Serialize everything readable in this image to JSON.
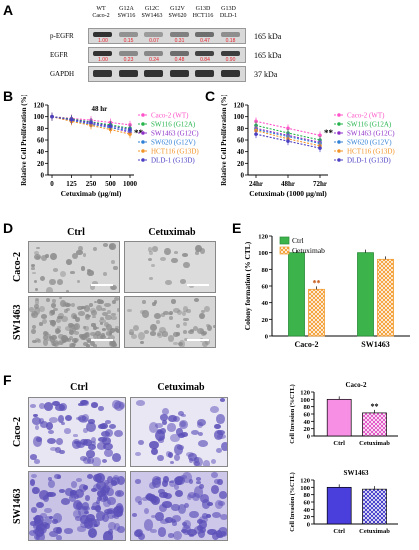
{
  "panels": {
    "A": "A",
    "B": "B",
    "C": "C",
    "D": "D",
    "E": "E",
    "F": "F"
  },
  "panelA": {
    "lanes": [
      {
        "line1": "WT",
        "line2": "Caco-2"
      },
      {
        "line1": "G12A",
        "line2": "SW116"
      },
      {
        "line1": "G12C",
        "line2": "SW1463"
      },
      {
        "line1": "G12V",
        "line2": "SW620"
      },
      {
        "line1": "G13D",
        "line2": "HCT116"
      },
      {
        "line1": "G13D",
        "line2": "DLD-1"
      }
    ],
    "rows": [
      {
        "label": "p-EGFR",
        "kda": "165 kDa",
        "values": [
          "1.00",
          "0.15",
          "0.07",
          "0.31",
          "0.47",
          "0.18"
        ]
      },
      {
        "label": "EGFR",
        "kda": "165 kDa",
        "values": [
          "1.00",
          "0.23",
          "0.24",
          "0.48",
          "0.84",
          "0.90"
        ]
      },
      {
        "label": "GAPDH",
        "kda": "37 kDa",
        "values": []
      }
    ],
    "value_color": "#e8212b"
  },
  "legend_lines": [
    "Caco-2 (WT)",
    "SW116 (G12A)",
    "SW1463 (G12C)",
    "SW620 (G12V)",
    "HCT116 (G13D)",
    "DLD-1 (G13D)"
  ],
  "series_colors": [
    "#ff52c8",
    "#22b34a",
    "#8e2fc8",
    "#2f7fd6",
    "#f29327",
    "#4a3ec2"
  ],
  "chart_B": {
    "type": "line",
    "ylabel": "Relative Cell Proliferation (%)",
    "xlabel": "Cetuximab (μg/ml)",
    "annotation": "48 hr",
    "x": [
      0,
      125,
      250,
      500,
      1000
    ],
    "x_ticks": [
      "0",
      "125",
      "250",
      "500",
      "1000"
    ],
    "ylim": [
      0,
      120
    ],
    "y_ticks": [
      "0",
      "20",
      "40",
      "60",
      "80",
      "100",
      "120"
    ],
    "sig": "**",
    "series": [
      {
        "name": "Caco-2 (WT)",
        "values": [
          100,
          97,
          94,
          90,
          86
        ]
      },
      {
        "name": "SW116 (G12A)",
        "values": [
          100,
          96,
          91,
          86,
          80
        ]
      },
      {
        "name": "SW1463 (G12C)",
        "values": [
          100,
          94,
          88,
          82,
          73
        ]
      },
      {
        "name": "SW620 (G12V)",
        "values": [
          100,
          93,
          87,
          81,
          76
        ]
      },
      {
        "name": "HCT116 (G13D)",
        "values": [
          100,
          92,
          85,
          78,
          70
        ]
      },
      {
        "name": "DLD-1 (G13D)",
        "values": [
          100,
          95,
          90,
          84,
          78
        ]
      }
    ]
  },
  "chart_C": {
    "type": "line",
    "ylabel": "Relative Cell Proliferation (%)",
    "xlabel": "Cetuximab (1000 μg/ml)",
    "x_ticks": [
      "24hr",
      "48hr",
      "72hr"
    ],
    "ylim": [
      0,
      120
    ],
    "y_ticks": [
      "0",
      "20",
      "40",
      "60",
      "80",
      "100",
      "120"
    ],
    "sig": "**",
    "series": [
      {
        "name": "Caco-2 (WT)",
        "values": [
          92,
          80,
          68
        ]
      },
      {
        "name": "SW116 (G12A)",
        "values": [
          85,
          72,
          60
        ]
      },
      {
        "name": "SW1463 (G12C)",
        "values": [
          80,
          68,
          56
        ]
      },
      {
        "name": "SW620 (G12V)",
        "values": [
          78,
          66,
          54
        ]
      },
      {
        "name": "HCT116 (G13D)",
        "values": [
          76,
          62,
          50
        ]
      },
      {
        "name": "DLD-1 (G13D)",
        "values": [
          70,
          58,
          46
        ]
      }
    ]
  },
  "panelD": {
    "cols": [
      "Ctrl",
      "Cetuximab"
    ],
    "rows": [
      "Caco-2",
      "SW1463"
    ]
  },
  "chart_E": {
    "type": "bar",
    "ylabel": "Colony formation (% CTL)",
    "categories": [
      "Caco-2",
      "SW1463"
    ],
    "ylim": [
      0,
      120
    ],
    "y_ticks": [
      "0",
      "20",
      "40",
      "60",
      "80",
      "100",
      "120"
    ],
    "sig": "**",
    "series": [
      {
        "name": "Ctrl",
        "values": [
          100,
          100
        ],
        "color": "#3cb44b"
      },
      {
        "name": "Cetuximab",
        "values": [
          56,
          92
        ],
        "color": "#f39b2d"
      }
    ]
  },
  "panelF": {
    "cols": [
      "Ctrl",
      "Cetuximab"
    ],
    "rows": [
      "Caco-2",
      "SW1463"
    ]
  },
  "chart_F1": {
    "type": "bar",
    "title": "Caco-2",
    "ylabel": "Cell Invasion (%CTL)",
    "categories": [
      "Ctrl",
      "Cetuximab"
    ],
    "values": [
      100,
      63
    ],
    "ylim": [
      0,
      120
    ],
    "y_ticks": [
      "0",
      "20",
      "40",
      "60",
      "80",
      "100",
      "120"
    ],
    "sig": "**",
    "color": "#f78fe4"
  },
  "chart_F2": {
    "type": "bar",
    "title": "SW1463",
    "ylabel": "Cell Invasion (%CTL)",
    "categories": [
      "Ctrl",
      "Cetuximab"
    ],
    "values": [
      100,
      95
    ],
    "ylim": [
      0,
      120
    ],
    "y_ticks": [
      "0",
      "20",
      "40",
      "60",
      "80",
      "100",
      "120"
    ],
    "color": "#4a3fdc"
  }
}
